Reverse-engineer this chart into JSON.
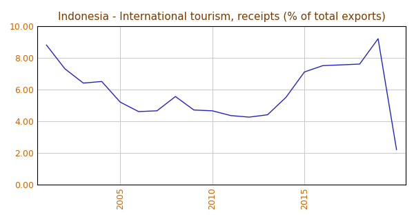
{
  "title": "Indonesia - International tourism, receipts (% of total exports)",
  "years": [
    2001,
    2002,
    2003,
    2004,
    2005,
    2006,
    2007,
    2008,
    2009,
    2010,
    2011,
    2012,
    2013,
    2014,
    2015,
    2016,
    2017,
    2018,
    2019,
    2020
  ],
  "values": [
    8.8,
    7.3,
    6.4,
    6.5,
    5.2,
    4.6,
    4.65,
    5.55,
    4.7,
    4.65,
    4.35,
    4.25,
    4.4,
    5.5,
    7.1,
    7.5,
    7.55,
    7.6,
    9.2,
    2.2
  ],
  "line_color": "#2222cc",
  "background_color": "#ffffff",
  "grid_color": "#cccccc",
  "title_color": "#7B3B00",
  "tick_label_color": "#cc6600",
  "ylim": [
    0.0,
    10.0
  ],
  "yticks": [
    0.0,
    2.0,
    4.0,
    6.0,
    8.0,
    10.0
  ],
  "xticks": [
    2005,
    2010,
    2015
  ],
  "title_fontsize": 11,
  "xlim": [
    2000.5,
    2020.5
  ]
}
